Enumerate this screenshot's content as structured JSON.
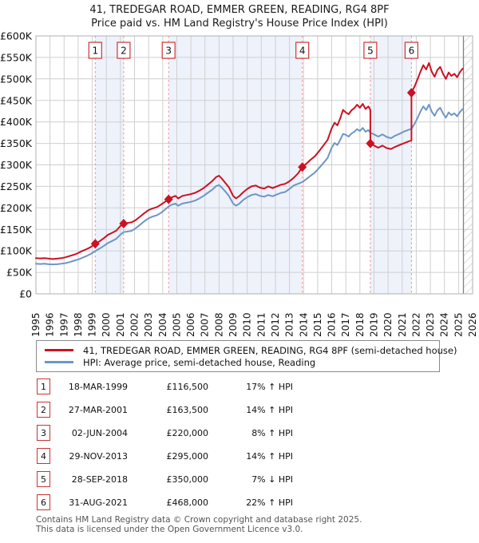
{
  "title": {
    "line1": "41, TREDEGAR ROAD, EMMER GREEN, READING, RG4 8PF",
    "line2": "Price paid vs. HM Land Registry's House Price Index (HPI)"
  },
  "chart_data": {
    "type": "line",
    "unit": "GBP thousands",
    "x_range": [
      1995,
      2026
    ],
    "y_range_thousands": [
      0,
      600
    ],
    "grid": true,
    "legend_position": "below",
    "x_ticks": [
      1995,
      1996,
      1997,
      1998,
      1999,
      2000,
      2001,
      2002,
      2003,
      2004,
      2005,
      2006,
      2007,
      2008,
      2009,
      2010,
      2011,
      2012,
      2013,
      2014,
      2015,
      2016,
      2017,
      2018,
      2019,
      2020,
      2021,
      2022,
      2023,
      2024,
      2025,
      2026
    ],
    "y_ticks": [
      {
        "v": 600,
        "label": "£600K"
      },
      {
        "v": 550,
        "label": "£550K"
      },
      {
        "v": 500,
        "label": "£500K"
      },
      {
        "v": 450,
        "label": "£450K"
      },
      {
        "v": 400,
        "label": "£400K"
      },
      {
        "v": 350,
        "label": "£350K"
      },
      {
        "v": 300,
        "label": "£300K"
      },
      {
        "v": 250,
        "label": "£250K"
      },
      {
        "v": 200,
        "label": "£200K"
      },
      {
        "v": 150,
        "label": "£150K"
      },
      {
        "v": 100,
        "label": "£100K"
      },
      {
        "v": 50,
        "label": "£50K"
      },
      {
        "v": 0,
        "label": "£0"
      }
    ],
    "colors": {
      "price_paid": "#cc1122",
      "hpi": "#6d96c8",
      "band": "#eef2fb",
      "grid": "#cfcfcf",
      "border": "#b0b0b0",
      "dashed": "#f08f8f",
      "hatch": "#c6c6c6",
      "hatch_edge": "#808080",
      "sale_box_border": "#cc3333"
    },
    "ownership_bands": [
      [
        1999.21,
        2001.23
      ],
      [
        2004.42,
        2013.91
      ],
      [
        2018.74,
        2021.66
      ]
    ],
    "hatch_start": 2025.35,
    "sales": [
      {
        "num": "1",
        "year": 1999.21,
        "price_thousands": 116.5
      },
      {
        "num": "2",
        "year": 2001.23,
        "price_thousands": 163.5
      },
      {
        "num": "3",
        "year": 2004.42,
        "price_thousands": 220
      },
      {
        "num": "4",
        "year": 2013.91,
        "price_thousands": 295
      },
      {
        "num": "5",
        "year": 2018.74,
        "price_thousands": 350
      },
      {
        "num": "6",
        "year": 2021.66,
        "price_thousands": 468
      }
    ],
    "series": [
      {
        "name": "41, TREDEGAR ROAD, EMMER GREEN, READING, RG4 8PF (semi-detached house)",
        "color_key": "price_paid",
        "points": [
          [
            1995.0,
            83
          ],
          [
            1995.3,
            82.5
          ],
          [
            1995.6,
            83
          ],
          [
            1995.9,
            82
          ],
          [
            1996.2,
            81
          ],
          [
            1996.5,
            82
          ],
          [
            1996.8,
            83
          ],
          [
            1997.1,
            85
          ],
          [
            1997.4,
            88
          ],
          [
            1997.7,
            91
          ],
          [
            1998.0,
            95
          ],
          [
            1998.3,
            100
          ],
          [
            1998.6,
            104
          ],
          [
            1998.9,
            109
          ],
          [
            1999.21,
            116.5
          ],
          [
            1999.5,
            122
          ],
          [
            1999.8,
            129
          ],
          [
            2000.1,
            137
          ],
          [
            2000.4,
            142
          ],
          [
            2000.7,
            147
          ],
          [
            2001.0,
            158
          ],
          [
            2001.23,
            163.5
          ],
          [
            2001.5,
            165
          ],
          [
            2001.8,
            166.5
          ],
          [
            2002.1,
            172
          ],
          [
            2002.4,
            180
          ],
          [
            2002.7,
            188
          ],
          [
            2003.0,
            195
          ],
          [
            2003.3,
            199
          ],
          [
            2003.6,
            202
          ],
          [
            2003.9,
            208
          ],
          [
            2004.2,
            215
          ],
          [
            2004.42,
            220
          ],
          [
            2004.6,
            224
          ],
          [
            2004.9,
            228
          ],
          [
            2005.1,
            222
          ],
          [
            2005.4,
            228
          ],
          [
            2005.7,
            230
          ],
          [
            2006.0,
            232
          ],
          [
            2006.3,
            235
          ],
          [
            2006.6,
            240
          ],
          [
            2006.9,
            246
          ],
          [
            2007.2,
            254
          ],
          [
            2007.5,
            262
          ],
          [
            2007.8,
            272
          ],
          [
            2008.0,
            275
          ],
          [
            2008.2,
            268
          ],
          [
            2008.45,
            258
          ],
          [
            2008.7,
            248
          ],
          [
            2009.0,
            228
          ],
          [
            2009.2,
            222
          ],
          [
            2009.45,
            228
          ],
          [
            2009.7,
            236
          ],
          [
            2010.0,
            244
          ],
          [
            2010.3,
            250
          ],
          [
            2010.6,
            252
          ],
          [
            2010.9,
            247
          ],
          [
            2011.2,
            245
          ],
          [
            2011.5,
            250
          ],
          [
            2011.8,
            246
          ],
          [
            2012.1,
            250
          ],
          [
            2012.4,
            254
          ],
          [
            2012.7,
            256
          ],
          [
            2013.0,
            262
          ],
          [
            2013.3,
            270
          ],
          [
            2013.6,
            280
          ],
          [
            2013.91,
            295
          ],
          [
            2014.2,
            303
          ],
          [
            2014.5,
            312
          ],
          [
            2014.8,
            320
          ],
          [
            2015.1,
            332
          ],
          [
            2015.4,
            345
          ],
          [
            2015.7,
            358
          ],
          [
            2016.0,
            385
          ],
          [
            2016.2,
            398
          ],
          [
            2016.4,
            392
          ],
          [
            2016.6,
            408
          ],
          [
            2016.8,
            428
          ],
          [
            2017.0,
            422
          ],
          [
            2017.2,
            418
          ],
          [
            2017.4,
            427
          ],
          [
            2017.6,
            432
          ],
          [
            2017.8,
            440
          ],
          [
            2018.0,
            433
          ],
          [
            2018.2,
            442
          ],
          [
            2018.4,
            430
          ],
          [
            2018.6,
            436
          ],
          [
            2018.74,
            428
          ],
          [
            2018.74,
            350
          ],
          [
            2019.0,
            345
          ],
          [
            2019.3,
            340
          ],
          [
            2019.6,
            345
          ],
          [
            2019.9,
            339
          ],
          [
            2020.2,
            337
          ],
          [
            2020.5,
            342
          ],
          [
            2020.8,
            346
          ],
          [
            2021.1,
            350
          ],
          [
            2021.4,
            354
          ],
          [
            2021.66,
            357
          ],
          [
            2021.66,
            468
          ],
          [
            2021.9,
            484
          ],
          [
            2022.1,
            500
          ],
          [
            2022.3,
            517
          ],
          [
            2022.5,
            532
          ],
          [
            2022.7,
            522
          ],
          [
            2022.9,
            537
          ],
          [
            2023.1,
            517
          ],
          [
            2023.3,
            505
          ],
          [
            2023.5,
            521
          ],
          [
            2023.7,
            528
          ],
          [
            2023.9,
            512
          ],
          [
            2024.1,
            500
          ],
          [
            2024.3,
            515
          ],
          [
            2024.5,
            507
          ],
          [
            2024.7,
            512
          ],
          [
            2024.9,
            504
          ],
          [
            2025.1,
            516
          ],
          [
            2025.3,
            524
          ]
        ]
      },
      {
        "name": "HPI: Average price, semi-detached house, Reading",
        "color_key": "hpi",
        "points": [
          [
            1995.0,
            70
          ],
          [
            1995.3,
            69.5
          ],
          [
            1995.6,
            70
          ],
          [
            1995.9,
            69
          ],
          [
            1996.2,
            68.5
          ],
          [
            1996.5,
            69
          ],
          [
            1996.8,
            70
          ],
          [
            1997.1,
            71.5
          ],
          [
            1997.4,
            74
          ],
          [
            1997.7,
            77
          ],
          [
            1998.0,
            80
          ],
          [
            1998.3,
            84
          ],
          [
            1998.6,
            88
          ],
          [
            1998.9,
            93
          ],
          [
            1999.21,
            99.5
          ],
          [
            1999.5,
            105
          ],
          [
            1999.8,
            111
          ],
          [
            2000.1,
            118
          ],
          [
            2000.4,
            123
          ],
          [
            2000.7,
            128
          ],
          [
            2001.0,
            138
          ],
          [
            2001.23,
            143.5
          ],
          [
            2001.5,
            145
          ],
          [
            2001.8,
            146.5
          ],
          [
            2002.1,
            153
          ],
          [
            2002.4,
            161
          ],
          [
            2002.7,
            169
          ],
          [
            2003.0,
            176
          ],
          [
            2003.3,
            180
          ],
          [
            2003.6,
            183
          ],
          [
            2003.9,
            189
          ],
          [
            2004.2,
            197
          ],
          [
            2004.42,
            203
          ],
          [
            2004.6,
            207
          ],
          [
            2004.9,
            210
          ],
          [
            2005.1,
            205
          ],
          [
            2005.4,
            210
          ],
          [
            2005.7,
            212
          ],
          [
            2006.0,
            214
          ],
          [
            2006.3,
            217
          ],
          [
            2006.6,
            222
          ],
          [
            2006.9,
            228
          ],
          [
            2007.2,
            235
          ],
          [
            2007.5,
            242
          ],
          [
            2007.8,
            251
          ],
          [
            2008.0,
            253
          ],
          [
            2008.2,
            247
          ],
          [
            2008.45,
            238
          ],
          [
            2008.7,
            228
          ],
          [
            2009.0,
            210
          ],
          [
            2009.2,
            205
          ],
          [
            2009.45,
            210
          ],
          [
            2009.7,
            218
          ],
          [
            2010.0,
            225
          ],
          [
            2010.3,
            230
          ],
          [
            2010.6,
            232
          ],
          [
            2010.9,
            228
          ],
          [
            2011.2,
            226
          ],
          [
            2011.5,
            230
          ],
          [
            2011.8,
            227
          ],
          [
            2012.1,
            231
          ],
          [
            2012.4,
            235
          ],
          [
            2012.7,
            237
          ],
          [
            2013.0,
            244
          ],
          [
            2013.3,
            252
          ],
          [
            2013.6,
            256
          ],
          [
            2013.91,
            260
          ],
          [
            2014.2,
            267
          ],
          [
            2014.5,
            275
          ],
          [
            2014.8,
            282
          ],
          [
            2015.1,
            293
          ],
          [
            2015.4,
            304
          ],
          [
            2015.7,
            316
          ],
          [
            2016.0,
            340
          ],
          [
            2016.2,
            351
          ],
          [
            2016.4,
            346
          ],
          [
            2016.6,
            358
          ],
          [
            2016.8,
            372
          ],
          [
            2017.0,
            370
          ],
          [
            2017.2,
            366
          ],
          [
            2017.4,
            373
          ],
          [
            2017.6,
            377
          ],
          [
            2017.8,
            383
          ],
          [
            2018.0,
            379
          ],
          [
            2018.2,
            386
          ],
          [
            2018.4,
            377
          ],
          [
            2018.6,
            381
          ],
          [
            2018.74,
            375
          ],
          [
            2019.0,
            371
          ],
          [
            2019.3,
            366
          ],
          [
            2019.6,
            371
          ],
          [
            2019.9,
            365
          ],
          [
            2020.2,
            362
          ],
          [
            2020.5,
            368
          ],
          [
            2020.8,
            372
          ],
          [
            2021.1,
            377
          ],
          [
            2021.4,
            381
          ],
          [
            2021.66,
            384
          ],
          [
            2021.9,
            397
          ],
          [
            2022.1,
            410
          ],
          [
            2022.3,
            424
          ],
          [
            2022.5,
            436
          ],
          [
            2022.7,
            428
          ],
          [
            2022.9,
            440
          ],
          [
            2023.1,
            424
          ],
          [
            2023.3,
            414
          ],
          [
            2023.5,
            427
          ],
          [
            2023.7,
            433
          ],
          [
            2023.9,
            420
          ],
          [
            2024.1,
            410
          ],
          [
            2024.3,
            422
          ],
          [
            2024.5,
            416
          ],
          [
            2024.7,
            420
          ],
          [
            2024.9,
            413
          ],
          [
            2025.1,
            423
          ],
          [
            2025.3,
            430
          ]
        ]
      }
    ]
  },
  "legend": {
    "items": [
      {
        "label": "41, TREDEGAR ROAD, EMMER GREEN, READING, RG4 8PF (semi-detached house)",
        "color": "#cc1122"
      },
      {
        "label": "HPI: Average price, semi-detached house, Reading",
        "color": "#6d96c8"
      }
    ]
  },
  "transactions": [
    {
      "num": "1",
      "date": "18-MAR-1999",
      "price": "£116,500",
      "hpi": "17% ↑ HPI"
    },
    {
      "num": "2",
      "date": "27-MAR-2001",
      "price": "£163,500",
      "hpi": "14% ↑ HPI"
    },
    {
      "num": "3",
      "date": "02-JUN-2004",
      "price": "£220,000",
      "hpi": "8% ↑ HPI"
    },
    {
      "num": "4",
      "date": "29-NOV-2013",
      "price": "£295,000",
      "hpi": "14% ↑ HPI"
    },
    {
      "num": "5",
      "date": "28-SEP-2018",
      "price": "£350,000",
      "hpi": "7% ↓ HPI"
    },
    {
      "num": "6",
      "date": "31-AUG-2021",
      "price": "£468,000",
      "hpi": "22% ↑ HPI"
    }
  ],
  "footer": {
    "line1": "Contains HM Land Registry data © Crown copyright and database right 2025.",
    "line2": "This data is licensed under the Open Government Licence v3.0."
  }
}
